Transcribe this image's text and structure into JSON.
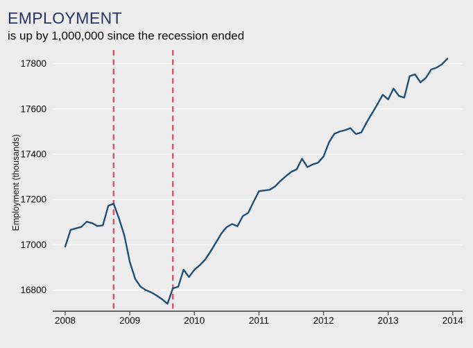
{
  "header": {
    "title": "EMPLOYMENT",
    "subtitle": "is up by 1,000,000 since the recession ended"
  },
  "chart_data": {
    "type": "line",
    "title": "EMPLOYMENT",
    "subtitle": "is up by 1,000,000 since the recession ended",
    "xlabel": "",
    "ylabel": "Employment (thousands)",
    "x_unit": "month",
    "x_start": "2008-01",
    "x_end": "2013-12",
    "x_ticks": [
      2008,
      2009,
      2010,
      2011,
      2012,
      2013,
      2014
    ],
    "y_ticks": [
      16800,
      17000,
      17200,
      17400,
      17600,
      17800
    ],
    "xlim": [
      "2008-01",
      "2014-01"
    ],
    "ylim": [
      16700,
      17860
    ],
    "grid": "horizontal",
    "legend": "none",
    "series": [
      {
        "name": "Employment (thousands)",
        "values": [
          16992,
          17066,
          17073,
          17079,
          17102,
          17096,
          17083,
          17086,
          17172,
          17182,
          17116,
          17040,
          16925,
          16850,
          16815,
          16800,
          16790,
          16776,
          16760,
          16740,
          16808,
          16815,
          16890,
          16858,
          16890,
          16910,
          16935,
          16970,
          17010,
          17050,
          17078,
          17092,
          17082,
          17127,
          17141,
          17190,
          17237,
          17240,
          17243,
          17258,
          17282,
          17303,
          17322,
          17333,
          17380,
          17343,
          17355,
          17363,
          17390,
          17452,
          17490,
          17500,
          17506,
          17515,
          17489,
          17496,
          17540,
          17580,
          17620,
          17662,
          17642,
          17690,
          17657,
          17650,
          17745,
          17752,
          17717,
          17737,
          17774,
          17782,
          17797,
          17822
        ]
      }
    ],
    "reference_lines": {
      "style": "dashed",
      "orientation": "vertical",
      "x_months": [
        "2008-10",
        "2009-09"
      ]
    },
    "colors": {
      "line": "#1d4f78",
      "reference_line": "#d0566d",
      "background": "#edecec",
      "gridline": "#f7faf8",
      "axis": "#545454",
      "title": "#263562",
      "text": "#000000"
    }
  }
}
